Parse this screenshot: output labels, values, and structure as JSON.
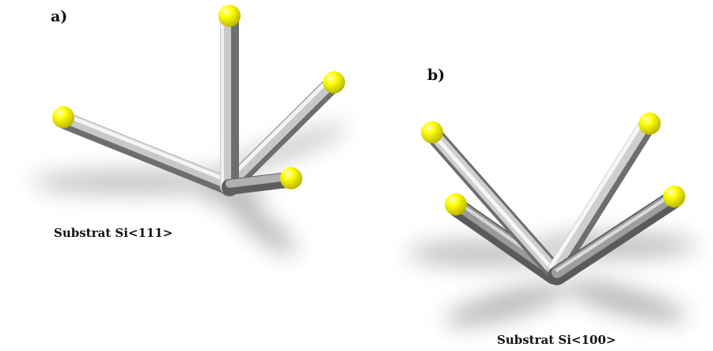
{
  "panels": [
    {
      "id": "a",
      "label": "a)",
      "caption": "Substrat Si<111>"
    },
    {
      "id": "b",
      "label": "b)",
      "caption": "Substrat Si<100>"
    }
  ],
  "colors": {
    "rod": "#c8c8c8",
    "rod_shadow": "#6e6e6e",
    "sphere": "#ffff00",
    "sphere_shadow": "#b5b000",
    "ground_shadow": "#8a8a8a"
  },
  "icons": [
    "sphere",
    "rod"
  ]
}
